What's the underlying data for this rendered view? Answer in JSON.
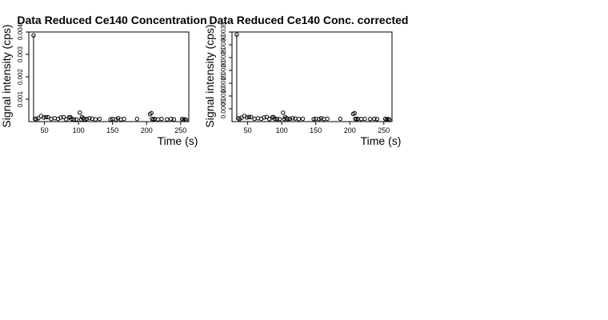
{
  "chart_data": [
    {
      "type": "scatter",
      "title": "Data Reduced Ce140 Concentration",
      "xlabel": "Time (s)",
      "ylabel": "Signal intensity (cps)",
      "xlim": [
        27,
        262
      ],
      "ylim": [
        0,
        0.004
      ],
      "xticks": [
        50,
        100,
        150,
        200,
        250
      ],
      "yticks": [
        0.001,
        0.002,
        0.003,
        0.004
      ],
      "ytick_labels": [
        "0.001",
        "0.002",
        "0.003",
        "0.004"
      ],
      "grid": false,
      "drop_line": {
        "x": 34,
        "from": 0.00013,
        "to": 0.00385
      },
      "x": [
        34,
        36,
        38,
        41,
        45,
        49,
        52,
        55,
        60,
        65,
        70,
        74,
        78,
        82,
        86,
        88,
        90,
        93,
        97,
        102,
        104,
        105,
        107,
        109,
        112,
        116,
        120,
        125,
        131,
        147,
        150,
        155,
        158,
        162,
        167,
        186,
        205,
        207,
        208,
        210,
        212,
        217,
        222,
        230,
        236,
        240,
        252,
        254,
        256,
        258
      ],
      "y": [
        0.00385,
        0.00013,
        0.0001,
        0.00015,
        0.00025,
        0.00018,
        0.0002,
        0.0002,
        0.00012,
        0.00015,
        0.00012,
        0.00018,
        0.0002,
        0.0001,
        0.00018,
        0.0002,
        0.00012,
        0.0001,
        0.0001,
        0.0004,
        0.0001,
        0.0002,
        0.00015,
        0.0001,
        0.00012,
        0.00015,
        0.00013,
        0.0001,
        0.00012,
        0.0001,
        0.00012,
        0.0001,
        0.00015,
        0.0001,
        0.00012,
        0.00012,
        0.00033,
        0.00038,
        0.00012,
        0.0001,
        0.00012,
        0.0001,
        0.00012,
        0.0001,
        0.00012,
        0.0001,
        0.00012,
        8e-05,
        0.0001,
        8e-05
      ]
    },
    {
      "type": "scatter",
      "title": "Data Reduced Ce140 Conc. corrected",
      "xlabel": "Time (s)",
      "ylabel": "Signal intensity (cps)",
      "xlim": [
        27,
        262
      ],
      "ylim": [
        0,
        0.0035
      ],
      "xticks": [
        50,
        100,
        150,
        200,
        250
      ],
      "yticks": [
        0.0005,
        0.001,
        0.0015,
        0.002,
        0.0025,
        0.003,
        0.0035
      ],
      "ytick_labels": [
        "0.0005",
        "0.0010",
        "0.0015",
        "0.0020",
        "0.0025",
        "0.0030",
        "0.0035"
      ],
      "grid": false,
      "drop_line": {
        "x": 34,
        "from": 0.00013,
        "to": 0.0034
      },
      "x": [
        34,
        36,
        38,
        41,
        45,
        49,
        52,
        55,
        60,
        65,
        70,
        74,
        78,
        82,
        86,
        88,
        90,
        93,
        97,
        102,
        104,
        105,
        107,
        109,
        112,
        116,
        120,
        125,
        131,
        147,
        150,
        155,
        158,
        162,
        167,
        186,
        205,
        207,
        208,
        210,
        212,
        217,
        222,
        230,
        236,
        240,
        252,
        254,
        256,
        258
      ],
      "y": [
        0.0034,
        0.00013,
        0.0001,
        0.00015,
        0.00022,
        0.00016,
        0.00018,
        0.00018,
        0.00011,
        0.00013,
        0.00011,
        0.00016,
        0.00018,
        0.0001,
        0.00016,
        0.00018,
        0.00011,
        0.0001,
        0.0001,
        0.00035,
        0.0001,
        0.00018,
        0.00013,
        0.0001,
        0.00011,
        0.00013,
        0.00012,
        0.0001,
        0.00011,
        0.0001,
        0.00011,
        0.0001,
        0.00013,
        0.0001,
        0.00011,
        0.00011,
        0.0003,
        0.00033,
        0.00011,
        0.0001,
        0.00011,
        0.0001,
        0.00011,
        0.0001,
        0.00011,
        0.0001,
        0.00011,
        8e-05,
        0.0001,
        8e-05
      ]
    }
  ]
}
